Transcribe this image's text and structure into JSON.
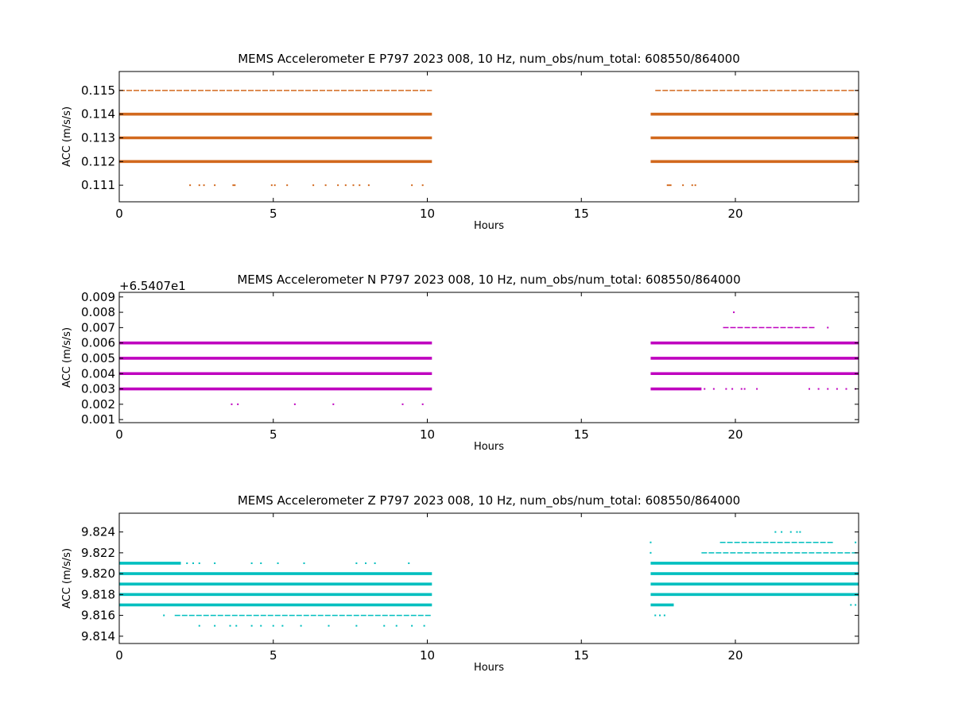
{
  "chart_data": [
    {
      "type": "scatter",
      "title": "MEMS Accelerometer E P797 2023 008, 10 Hz, num_obs/num_total: 608550/864000",
      "xlabel": "Hours",
      "ylabel": "ACC (m/s/s)",
      "xlim": [
        0,
        24
      ],
      "ylim": [
        0.1103,
        0.1158
      ],
      "xticks": [
        0,
        5,
        10,
        15,
        20
      ],
      "xtick_labels": [
        "0",
        "5",
        "10",
        "15",
        "20"
      ],
      "yticks": [
        0.111,
        0.112,
        0.113,
        0.114,
        0.115
      ],
      "ytick_labels": [
        "0.111",
        "0.112",
        "0.113",
        "0.114",
        "0.115"
      ],
      "offset_label": "",
      "color": "#d2691e",
      "gap_hours": [
        10.15,
        17.25
      ],
      "series": [
        {
          "y": 0.112,
          "dense": [
            [
              0,
              10.15
            ],
            [
              17.25,
              24
            ]
          ]
        },
        {
          "y": 0.113,
          "dense": [
            [
              0,
              10.15
            ],
            [
              17.25,
              24
            ]
          ]
        },
        {
          "y": 0.114,
          "dense": [
            [
              0,
              10.15
            ],
            [
              17.25,
              24
            ]
          ]
        },
        {
          "y": 0.115,
          "dense": [
            [
              0,
              10.15
            ],
            [
              17.4,
              24
            ]
          ],
          "sparse": true
        },
        {
          "y": 0.111,
          "points": [
            2.3,
            2.6,
            2.75,
            3.1,
            3.7,
            3.75,
            4.95,
            5.05,
            5.45,
            6.3,
            6.7,
            7.1,
            7.35,
            7.6,
            7.8,
            8.1,
            9.5,
            9.85,
            17.8,
            17.85,
            17.9,
            18.3,
            18.6,
            18.7
          ]
        }
      ]
    },
    {
      "type": "scatter",
      "title": "MEMS Accelerometer N P797 2023 008, 10 Hz, num_obs/num_total: 608550/864000",
      "xlabel": "Hours",
      "ylabel": "ACC (m/s/s)",
      "xlim": [
        0,
        24
      ],
      "ylim": [
        0.0008,
        0.0093
      ],
      "xticks": [
        0,
        5,
        10,
        15,
        20
      ],
      "xtick_labels": [
        "0",
        "5",
        "10",
        "15",
        "20"
      ],
      "yticks": [
        0.001,
        0.002,
        0.003,
        0.004,
        0.005,
        0.006,
        0.007,
        0.008,
        0.009
      ],
      "ytick_labels": [
        "0.001",
        "0.002",
        "0.003",
        "0.004",
        "0.005",
        "0.006",
        "0.007",
        "0.008",
        "0.009"
      ],
      "offset_label": "+6.5407e1",
      "color": "#bf00bf",
      "gap_hours": [
        10.15,
        17.25
      ],
      "series": [
        {
          "y": 0.003,
          "dense": [
            [
              0,
              10.15
            ],
            [
              17.25,
              18.9
            ]
          ]
        },
        {
          "y": 0.004,
          "dense": [
            [
              0,
              10.15
            ],
            [
              17.25,
              24
            ]
          ]
        },
        {
          "y": 0.005,
          "dense": [
            [
              0,
              10.15
            ],
            [
              17.25,
              24
            ]
          ]
        },
        {
          "y": 0.006,
          "dense": [
            [
              0,
              10.15
            ],
            [
              17.25,
              24
            ]
          ]
        },
        {
          "y": 0.007,
          "dense": [
            [
              19.6,
              22.6
            ]
          ],
          "sparse": true
        },
        {
          "y": 0.003,
          "points": [
            19.0,
            19.3,
            19.7,
            19.9,
            20.2,
            20.3,
            20.7,
            22.4,
            22.7,
            23.0,
            23.3,
            23.6,
            23.9
          ]
        },
        {
          "y": 0.002,
          "points": [
            3.65,
            3.85,
            5.7,
            6.95,
            9.2,
            9.85
          ]
        },
        {
          "y": 0.008,
          "points": [
            19.95
          ]
        },
        {
          "y": 0.007,
          "points": [
            23.0
          ]
        }
      ]
    },
    {
      "type": "scatter",
      "title": "MEMS Accelerometer Z P797 2023 008, 10 Hz, num_obs/num_total: 608550/864000",
      "xlabel": "Hours",
      "ylabel": "ACC (m/s/s)",
      "xlim": [
        0,
        24
      ],
      "ylim": [
        9.8133,
        9.8258
      ],
      "xticks": [
        0,
        5,
        10,
        15,
        20
      ],
      "xtick_labels": [
        "0",
        "5",
        "10",
        "15",
        "20"
      ],
      "yticks": [
        9.814,
        9.816,
        9.818,
        9.82,
        9.822,
        9.824
      ],
      "ytick_labels": [
        "9.814",
        "9.816",
        "9.818",
        "9.820",
        "9.822",
        "9.824"
      ],
      "offset_label": "",
      "color": "#00bfbf",
      "gap_hours": [
        10.15,
        17.25
      ],
      "series": [
        {
          "y": 9.817,
          "dense": [
            [
              0,
              10.15
            ],
            [
              17.25,
              18.0
            ]
          ]
        },
        {
          "y": 9.818,
          "dense": [
            [
              0,
              10.15
            ],
            [
              17.25,
              24
            ]
          ]
        },
        {
          "y": 9.819,
          "dense": [
            [
              0,
              10.15
            ],
            [
              17.25,
              24
            ]
          ]
        },
        {
          "y": 9.82,
          "dense": [
            [
              0,
              10.15
            ],
            [
              17.25,
              24
            ]
          ]
        },
        {
          "y": 9.821,
          "dense": [
            [
              0,
              2.0
            ],
            [
              17.25,
              24
            ]
          ]
        },
        {
          "y": 9.822,
          "dense": [
            [
              18.9,
              24
            ]
          ],
          "sparse": true
        },
        {
          "y": 9.823,
          "dense": [
            [
              19.5,
              23.2
            ]
          ],
          "sparse": true
        },
        {
          "y": 9.816,
          "dense": [
            [
              1.8,
              10.15
            ]
          ],
          "sparse": true
        },
        {
          "y": 9.821,
          "points": [
            2.2,
            2.4,
            2.6,
            3.1,
            4.3,
            4.6,
            5.15,
            6.0,
            7.7,
            8.0,
            8.3,
            9.4
          ]
        },
        {
          "y": 9.815,
          "points": [
            2.6,
            3.1,
            3.6,
            3.8,
            4.3,
            4.6,
            5.0,
            5.3,
            5.9,
            6.8,
            7.7,
            8.6,
            9.0,
            9.5,
            9.9
          ]
        },
        {
          "y": 9.816,
          "points": [
            1.45,
            17.4,
            17.55,
            17.7
          ]
        },
        {
          "y": 9.824,
          "points": [
            21.3,
            21.5,
            21.8,
            22.0,
            22.1
          ]
        },
        {
          "y": 9.823,
          "points": [
            17.25,
            23.9
          ]
        },
        {
          "y": 9.822,
          "points": [
            17.25
          ]
        },
        {
          "y": 9.817,
          "points": [
            23.75,
            23.9
          ]
        }
      ]
    }
  ]
}
